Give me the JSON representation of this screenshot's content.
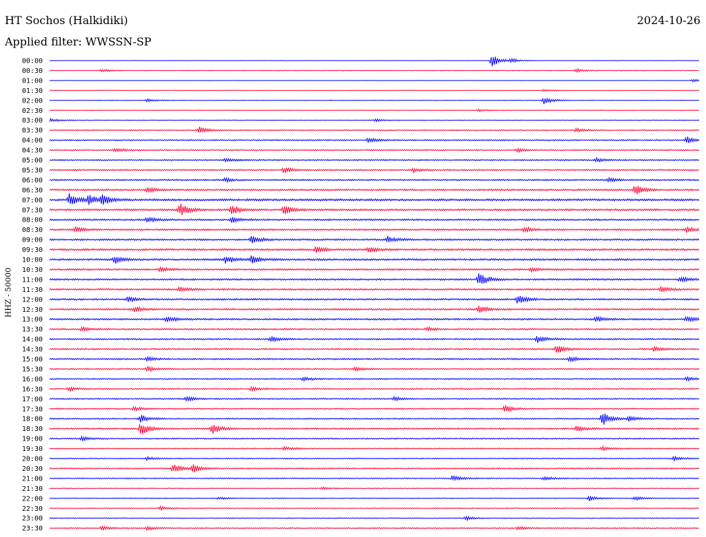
{
  "header": {
    "station": "HT Sochos (Halkidiki)",
    "date": "2024-10-26",
    "filter_label": "Applied filter: WWSSN-SP"
  },
  "chart_data": {
    "type": "line",
    "ylabel": "HHZ - 50000",
    "colors": {
      "even_hour_traces": "#0000ff",
      "half_hour_traces": "#ff0033"
    },
    "rows": [
      {
        "label": "00:00",
        "level": 0.2,
        "events": [
          {
            "t": 0.68,
            "amp": 9
          },
          {
            "t": 0.71,
            "amp": 3
          }
        ]
      },
      {
        "label": "00:30",
        "level": 0.3,
        "events": [
          {
            "t": 0.08,
            "amp": 3
          },
          {
            "t": 0.81,
            "amp": 3
          }
        ]
      },
      {
        "label": "01:00",
        "level": 0.2,
        "events": [
          {
            "t": 0.99,
            "amp": 3
          }
        ]
      },
      {
        "label": "01:30",
        "level": 0.25,
        "events": [
          {
            "t": 0.76,
            "amp": 2
          }
        ]
      },
      {
        "label": "02:00",
        "level": 0.3,
        "events": [
          {
            "t": 0.76,
            "amp": 6
          },
          {
            "t": 0.15,
            "amp": 2
          }
        ]
      },
      {
        "label": "02:30",
        "level": 0.3,
        "events": [
          {
            "t": 0.66,
            "amp": 2
          }
        ]
      },
      {
        "label": "03:00",
        "level": 0.35,
        "events": [
          {
            "t": 0.0,
            "amp": 3
          },
          {
            "t": 0.5,
            "amp": 2
          }
        ]
      },
      {
        "label": "03:30",
        "level": 0.5,
        "events": [
          {
            "t": 0.23,
            "amp": 5
          },
          {
            "t": 0.81,
            "amp": 3
          }
        ]
      },
      {
        "label": "04:00",
        "level": 0.6,
        "events": [
          {
            "t": 0.49,
            "amp": 4
          },
          {
            "t": 0.98,
            "amp": 5
          }
        ]
      },
      {
        "label": "04:30",
        "level": 0.6,
        "events": [
          {
            "t": 0.1,
            "amp": 3
          },
          {
            "t": 0.72,
            "amp": 3
          }
        ]
      },
      {
        "label": "05:00",
        "level": 0.6,
        "events": [
          {
            "t": 0.27,
            "amp": 3
          },
          {
            "t": 0.84,
            "amp": 3
          }
        ]
      },
      {
        "label": "05:30",
        "level": 0.65,
        "events": [
          {
            "t": 0.36,
            "amp": 4
          },
          {
            "t": 0.56,
            "amp": 3
          }
        ]
      },
      {
        "label": "06:00",
        "level": 0.7,
        "events": [
          {
            "t": 0.27,
            "amp": 3
          },
          {
            "t": 0.86,
            "amp": 3
          }
        ]
      },
      {
        "label": "06:30",
        "level": 0.8,
        "events": [
          {
            "t": 0.15,
            "amp": 4
          },
          {
            "t": 0.9,
            "amp": 8
          }
        ]
      },
      {
        "label": "07:00",
        "level": 1.0,
        "events": [
          {
            "t": 0.03,
            "amp": 9
          },
          {
            "t": 0.06,
            "amp": 7
          },
          {
            "t": 0.08,
            "amp": 9
          }
        ]
      },
      {
        "label": "07:30",
        "level": 0.9,
        "events": [
          {
            "t": 0.2,
            "amp": 10
          },
          {
            "t": 0.28,
            "amp": 7
          },
          {
            "t": 0.36,
            "amp": 7
          }
        ]
      },
      {
        "label": "08:00",
        "level": 0.8,
        "events": [
          {
            "t": 0.15,
            "amp": 4
          },
          {
            "t": 0.28,
            "amp": 4
          }
        ]
      },
      {
        "label": "08:30",
        "level": 0.8,
        "events": [
          {
            "t": 0.04,
            "amp": 4
          },
          {
            "t": 0.73,
            "amp": 4
          },
          {
            "t": 0.98,
            "amp": 4
          }
        ]
      },
      {
        "label": "09:00",
        "level": 0.8,
        "events": [
          {
            "t": 0.31,
            "amp": 6
          },
          {
            "t": 0.52,
            "amp": 5
          }
        ]
      },
      {
        "label": "09:30",
        "level": 0.9,
        "events": [
          {
            "t": 0.41,
            "amp": 5
          },
          {
            "t": 0.49,
            "amp": 4
          }
        ]
      },
      {
        "label": "10:00",
        "level": 0.9,
        "events": [
          {
            "t": 0.1,
            "amp": 6
          },
          {
            "t": 0.27,
            "amp": 6
          },
          {
            "t": 0.31,
            "amp": 6
          }
        ]
      },
      {
        "label": "10:30",
        "level": 0.8,
        "events": [
          {
            "t": 0.17,
            "amp": 3
          },
          {
            "t": 0.74,
            "amp": 3
          }
        ]
      },
      {
        "label": "11:00",
        "level": 0.8,
        "events": [
          {
            "t": 0.66,
            "amp": 10
          },
          {
            "t": 0.97,
            "amp": 4
          }
        ]
      },
      {
        "label": "11:30",
        "level": 0.8,
        "events": [
          {
            "t": 0.2,
            "amp": 4
          },
          {
            "t": 0.94,
            "amp": 4
          }
        ]
      },
      {
        "label": "12:00",
        "level": 0.8,
        "events": [
          {
            "t": 0.12,
            "amp": 4
          },
          {
            "t": 0.72,
            "amp": 7
          }
        ]
      },
      {
        "label": "12:30",
        "level": 0.8,
        "events": [
          {
            "t": 0.13,
            "amp": 4
          },
          {
            "t": 0.66,
            "amp": 5
          }
        ]
      },
      {
        "label": "13:00",
        "level": 0.8,
        "events": [
          {
            "t": 0.18,
            "amp": 4
          },
          {
            "t": 0.84,
            "amp": 4
          },
          {
            "t": 0.98,
            "amp": 4
          }
        ]
      },
      {
        "label": "13:30",
        "level": 0.7,
        "events": [
          {
            "t": 0.05,
            "amp": 3
          },
          {
            "t": 0.58,
            "amp": 3
          }
        ]
      },
      {
        "label": "14:00",
        "level": 0.7,
        "events": [
          {
            "t": 0.34,
            "amp": 4
          },
          {
            "t": 0.75,
            "amp": 6
          }
        ]
      },
      {
        "label": "14:30",
        "level": 0.7,
        "events": [
          {
            "t": 0.78,
            "amp": 7
          },
          {
            "t": 0.93,
            "amp": 4
          }
        ]
      },
      {
        "label": "15:00",
        "level": 0.7,
        "events": [
          {
            "t": 0.15,
            "amp": 3
          },
          {
            "t": 0.8,
            "amp": 4
          }
        ]
      },
      {
        "label": "15:30",
        "level": 0.6,
        "events": [
          {
            "t": 0.15,
            "amp": 4
          },
          {
            "t": 0.47,
            "amp": 3
          }
        ]
      },
      {
        "label": "16:00",
        "level": 0.6,
        "events": [
          {
            "t": 0.39,
            "amp": 3
          },
          {
            "t": 0.98,
            "amp": 3
          }
        ]
      },
      {
        "label": "16:30",
        "level": 0.6,
        "events": [
          {
            "t": 0.03,
            "amp": 3
          },
          {
            "t": 0.31,
            "amp": 3
          }
        ]
      },
      {
        "label": "17:00",
        "level": 0.6,
        "events": [
          {
            "t": 0.21,
            "amp": 4
          },
          {
            "t": 0.53,
            "amp": 3
          }
        ]
      },
      {
        "label": "17:30",
        "level": 0.6,
        "events": [
          {
            "t": 0.7,
            "amp": 5
          },
          {
            "t": 0.13,
            "amp": 3
          }
        ]
      },
      {
        "label": "18:00",
        "level": 0.6,
        "events": [
          {
            "t": 0.14,
            "amp": 6
          },
          {
            "t": 0.85,
            "amp": 10
          },
          {
            "t": 0.89,
            "amp": 4
          }
        ]
      },
      {
        "label": "18:30",
        "level": 0.7,
        "events": [
          {
            "t": 0.14,
            "amp": 10
          },
          {
            "t": 0.25,
            "amp": 8
          },
          {
            "t": 0.81,
            "amp": 4
          }
        ]
      },
      {
        "label": "19:00",
        "level": 0.6,
        "events": [
          {
            "t": 0.05,
            "amp": 3
          }
        ]
      },
      {
        "label": "19:30",
        "level": 0.5,
        "events": [
          {
            "t": 0.36,
            "amp": 3
          },
          {
            "t": 0.85,
            "amp": 3
          }
        ]
      },
      {
        "label": "20:00",
        "level": 0.5,
        "events": [
          {
            "t": 0.15,
            "amp": 3
          },
          {
            "t": 0.96,
            "amp": 3
          }
        ]
      },
      {
        "label": "20:30",
        "level": 0.6,
        "events": [
          {
            "t": 0.19,
            "amp": 7
          },
          {
            "t": 0.22,
            "amp": 6
          }
        ]
      },
      {
        "label": "21:00",
        "level": 0.5,
        "events": [
          {
            "t": 0.62,
            "amp": 4
          },
          {
            "t": 0.76,
            "amp": 3
          }
        ]
      },
      {
        "label": "21:30",
        "level": 0.4,
        "events": [
          {
            "t": 0.42,
            "amp": 2
          }
        ]
      },
      {
        "label": "22:00",
        "level": 0.4,
        "events": [
          {
            "t": 0.26,
            "amp": 2
          },
          {
            "t": 0.83,
            "amp": 4
          },
          {
            "t": 0.9,
            "amp": 3
          }
        ]
      },
      {
        "label": "22:30",
        "level": 0.4,
        "events": [
          {
            "t": 0.17,
            "amp": 3
          }
        ]
      },
      {
        "label": "23:00",
        "level": 0.4,
        "events": [
          {
            "t": 0.64,
            "amp": 3
          }
        ]
      },
      {
        "label": "23:30",
        "level": 0.5,
        "events": [
          {
            "t": 0.08,
            "amp": 3
          },
          {
            "t": 0.15,
            "amp": 3
          },
          {
            "t": 0.72,
            "amp": 3
          }
        ]
      }
    ]
  }
}
